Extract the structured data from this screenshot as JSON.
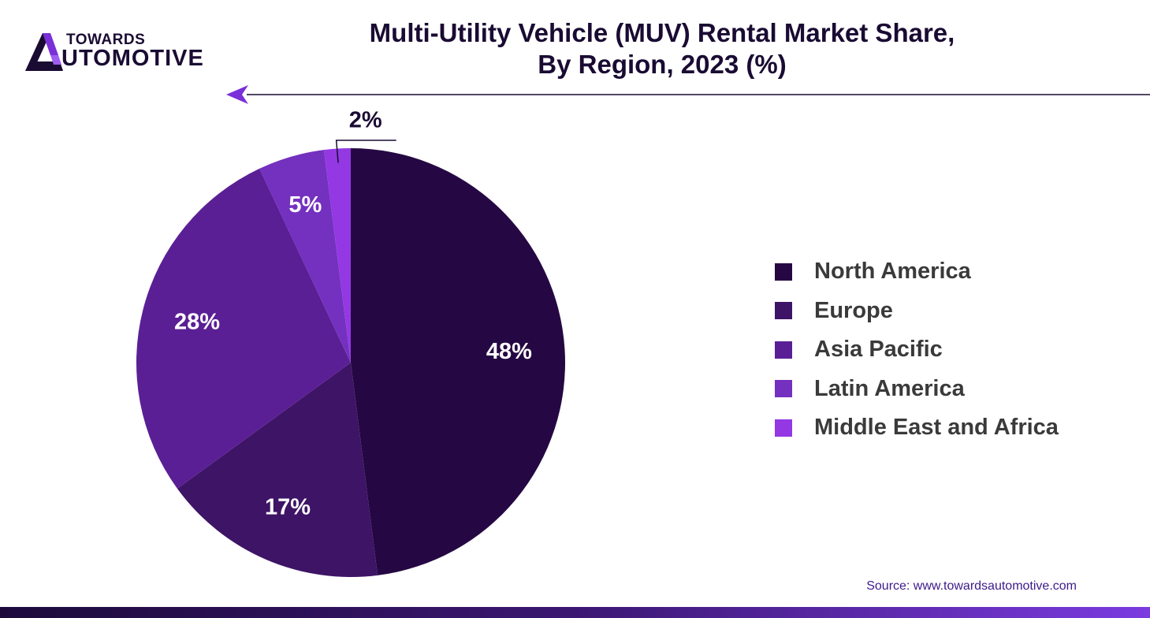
{
  "brand": {
    "top": "TOWARDS",
    "bottom": "AUTOMOTIVE",
    "bottom_rest": "UTOMOTIVE"
  },
  "title": {
    "line1": "Multi-Utility Vehicle (MUV) Rental Market Share,",
    "line2": "By Region, 2023 (%)"
  },
  "source": "Source: www.towardsautomotive.com",
  "colors": {
    "north_america": "#250843",
    "europe": "#3e1466",
    "asia_pacific": "#5b1f95",
    "latin_america": "#7430bf",
    "middle_east_africa": "#9338e3",
    "text_dark": "#1a0b33",
    "accent": "#7a2fd9"
  },
  "chart_data": {
    "type": "pie",
    "title": "Multi-Utility Vehicle (MUV) Rental Market Share, By Region, 2023 (%)",
    "categories": [
      "North America",
      "Europe",
      "Asia Pacific",
      "Latin America",
      "Middle East and Africa"
    ],
    "values": [
      48,
      17,
      28,
      5,
      2
    ],
    "labels": [
      "48%",
      "17%",
      "28%",
      "5%",
      "2%"
    ],
    "colors": [
      "#250843",
      "#3e1466",
      "#5b1f95",
      "#7430bf",
      "#9338e3"
    ],
    "legend_position": "right"
  }
}
